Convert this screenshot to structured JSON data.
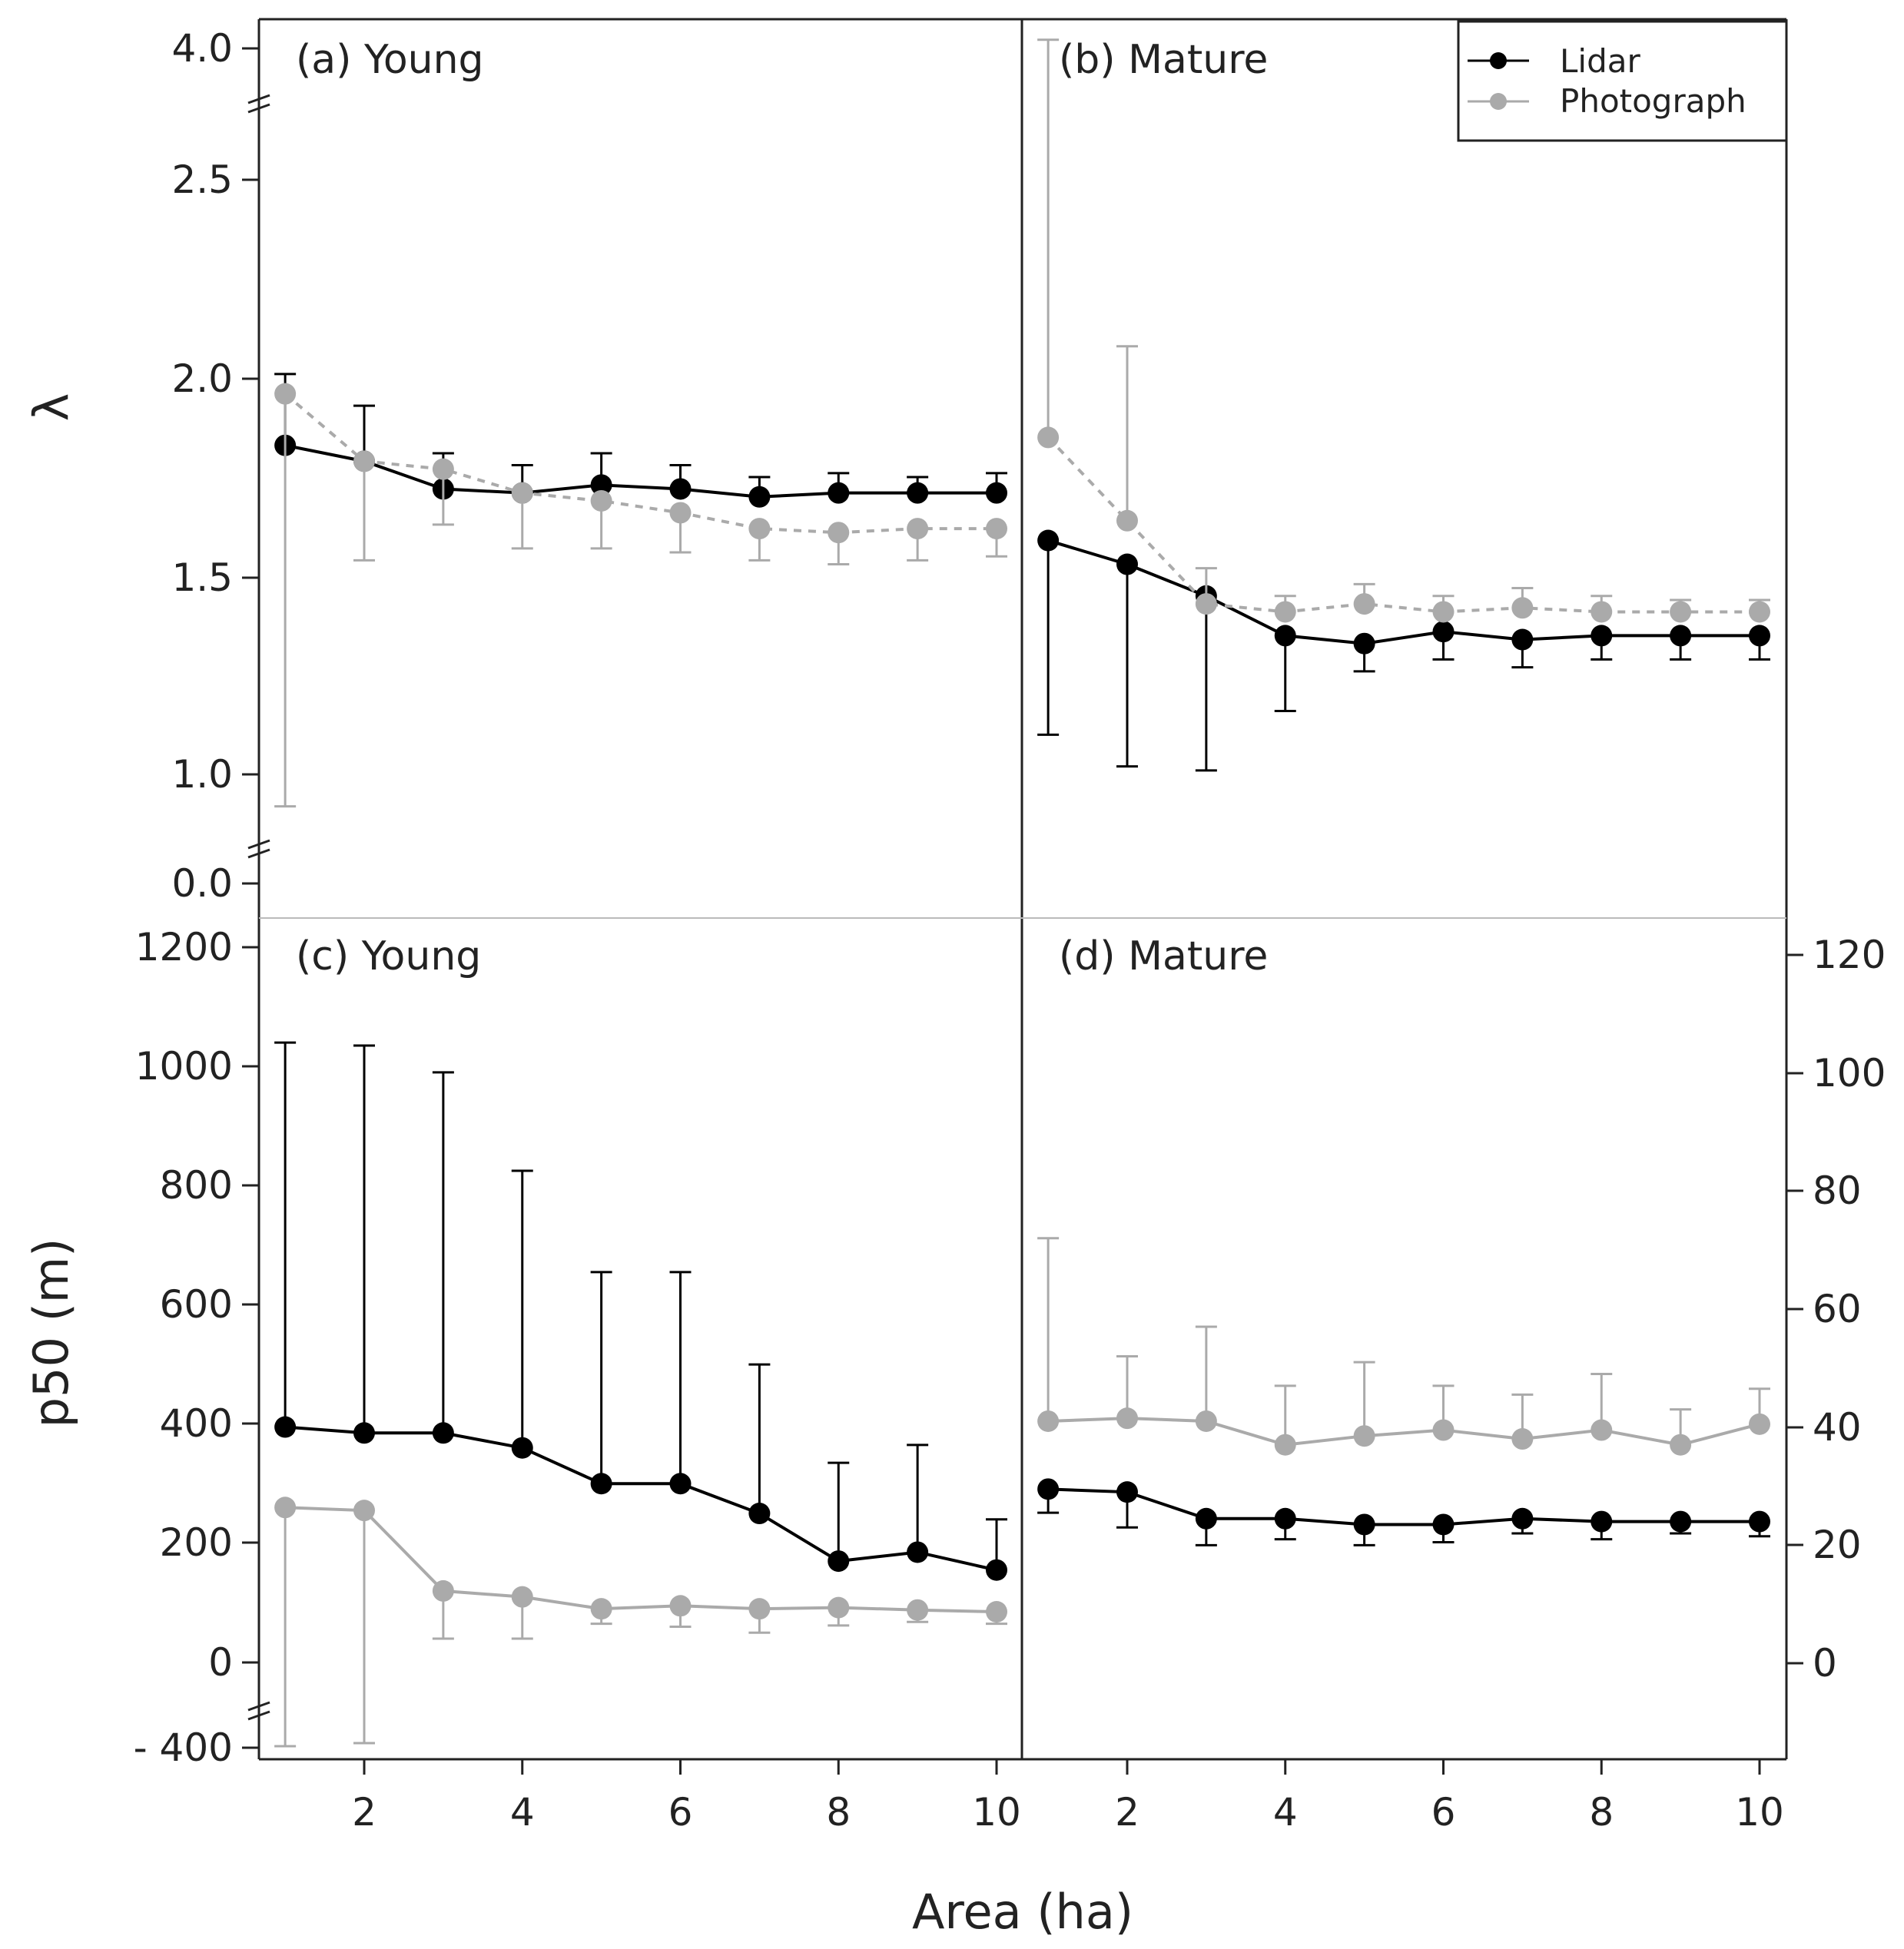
{
  "chart_data": {
    "type": "line",
    "xlabel": "Area (ha)",
    "x": [
      1,
      2,
      3,
      4,
      5,
      6,
      7,
      8,
      9,
      10
    ],
    "x_ticks": [
      2,
      4,
      6,
      8,
      10
    ],
    "xlim": [
      0.3,
      10.2
    ],
    "legend": {
      "placement": "top-right",
      "entries": [
        {
          "name": "Lidar",
          "color": "#000000"
        },
        {
          "name": "Photograph",
          "color": "#aaaaaa"
        }
      ]
    },
    "rows": [
      {
        "ylabel": "λ",
        "y_ticks": [
          "4.0",
          "2.5",
          "2.0",
          "1.5",
          "1.0",
          "0.0"
        ],
        "y_break": true
      },
      {
        "ylabel": "p50 (m)",
        "y_ticks": [
          "1200",
          "1000",
          "800",
          "600",
          "400",
          "200",
          "0",
          "- 400"
        ],
        "y_break": true
      }
    ],
    "panels": [
      {
        "label": "(a) Young",
        "ylim": [
          0.0,
          4.0
        ],
        "series": [
          {
            "name": "Lidar",
            "color": "#000000",
            "dashed": false,
            "values": [
              1.83,
              1.79,
              1.72,
              1.71,
              1.73,
              1.72,
              1.7,
              1.71,
              1.71,
              1.71
            ],
            "err_upper": [
              0.18,
              0.14,
              0.09,
              0.07,
              0.08,
              0.06,
              0.05,
              0.05,
              0.04,
              0.05
            ],
            "err_lower": [
              0.0,
              0.0,
              0.0,
              0.0,
              0.0,
              0.0,
              0.0,
              0.0,
              0.0,
              0.0
            ]
          },
          {
            "name": "Photograph",
            "color": "#aaaaaa",
            "dashed": true,
            "values": [
              1.96,
              1.79,
              1.77,
              1.71,
              1.69,
              1.66,
              1.62,
              1.61,
              1.62,
              1.62
            ],
            "err_upper": [
              0.0,
              0.0,
              0.0,
              0.0,
              0.0,
              0.0,
              0.0,
              0.0,
              0.0,
              0.0
            ],
            "err_lower": [
              1.12,
              0.25,
              0.14,
              0.14,
              0.12,
              0.1,
              0.08,
              0.08,
              0.08,
              0.07
            ]
          }
        ]
      },
      {
        "label": "(b) Mature",
        "ylim": [
          0.0,
          4.0
        ],
        "series": [
          {
            "name": "Lidar",
            "color": "#000000",
            "dashed": false,
            "values": [
              1.59,
              1.53,
              1.45,
              1.35,
              1.33,
              1.36,
              1.34,
              1.35,
              1.35,
              1.35
            ],
            "err_upper": [
              0.0,
              0.0,
              0.0,
              0.0,
              0.0,
              0.0,
              0.0,
              0.0,
              0.0,
              0.0
            ],
            "err_lower": [
              0.49,
              0.51,
              0.44,
              0.19,
              0.07,
              0.07,
              0.07,
              0.06,
              0.06,
              0.06
            ]
          },
          {
            "name": "Photograph",
            "color": "#aaaaaa",
            "dashed": true,
            "values": [
              1.85,
              1.64,
              1.43,
              1.41,
              1.43,
              1.41,
              1.42,
              1.41,
              1.41,
              1.41
            ],
            "err_upper": [
              1.9,
              0.44,
              0.09,
              0.04,
              0.05,
              0.04,
              0.05,
              0.04,
              0.03,
              0.03
            ],
            "err_lower": [
              0.0,
              0.0,
              0.0,
              0.0,
              0.0,
              0.0,
              0.0,
              0.0,
              0.0,
              0.0
            ]
          }
        ]
      },
      {
        "label": "(c) Young",
        "ylim": [
          -400,
          1200
        ],
        "series": [
          {
            "name": "Lidar",
            "color": "#000000",
            "dashed": false,
            "values": [
              395,
              385,
              385,
              360,
              300,
              300,
              250,
              170,
              185,
              155
            ],
            "err_upper": [
              645,
              650,
              605,
              465,
              355,
              355,
              250,
              165,
              180,
              85
            ],
            "err_lower": [
              0,
              0,
              0,
              0,
              0,
              0,
              0,
              0,
              0,
              0
            ]
          },
          {
            "name": "Photograph",
            "color": "#aaaaaa",
            "dashed": false,
            "values": [
              260,
              255,
              120,
              110,
              90,
              95,
              90,
              92,
              88,
              85
            ],
            "err_upper": [
              0,
              0,
              0,
              0,
              0,
              0,
              0,
              0,
              0,
              0
            ],
            "err_lower": [
              650,
              625,
              80,
              70,
              25,
              35,
              40,
              30,
              20,
              20
            ]
          }
        ]
      },
      {
        "label": "(d) Mature",
        "ylim": [
          -15,
          120
        ],
        "y_ticks": [
          "120",
          "100",
          "80",
          "60",
          "40",
          "20",
          "0"
        ],
        "y_axis_side": "right",
        "series": [
          {
            "name": "Lidar",
            "color": "#000000",
            "dashed": false,
            "values": [
              29.5,
              29.0,
              24.5,
              24.5,
              23.5,
              23.5,
              24.5,
              24.0,
              24.0,
              24.0
            ],
            "err_upper": [
              0,
              0,
              0,
              0,
              0,
              0,
              0,
              0,
              0,
              0
            ],
            "err_lower": [
              4.0,
              6.0,
              4.5,
              3.5,
              3.5,
              3.0,
              2.5,
              3.0,
              2.0,
              2.5
            ],
            "err_first_cap_offset": -0.3
          },
          {
            "name": "Photograph",
            "color": "#aaaaaa",
            "dashed": false,
            "values": [
              41.0,
              41.5,
              41.0,
              37.0,
              38.5,
              39.5,
              38.0,
              39.5,
              37.0,
              40.5
            ],
            "err_upper": [
              31.0,
              10.5,
              16.0,
              10.0,
              12.5,
              7.5,
              7.5,
              9.5,
              6.0,
              6.0
            ],
            "err_lower": [
              0,
              0,
              0,
              0,
              0,
              0,
              0,
              0,
              0,
              0
            ]
          }
        ]
      }
    ]
  }
}
